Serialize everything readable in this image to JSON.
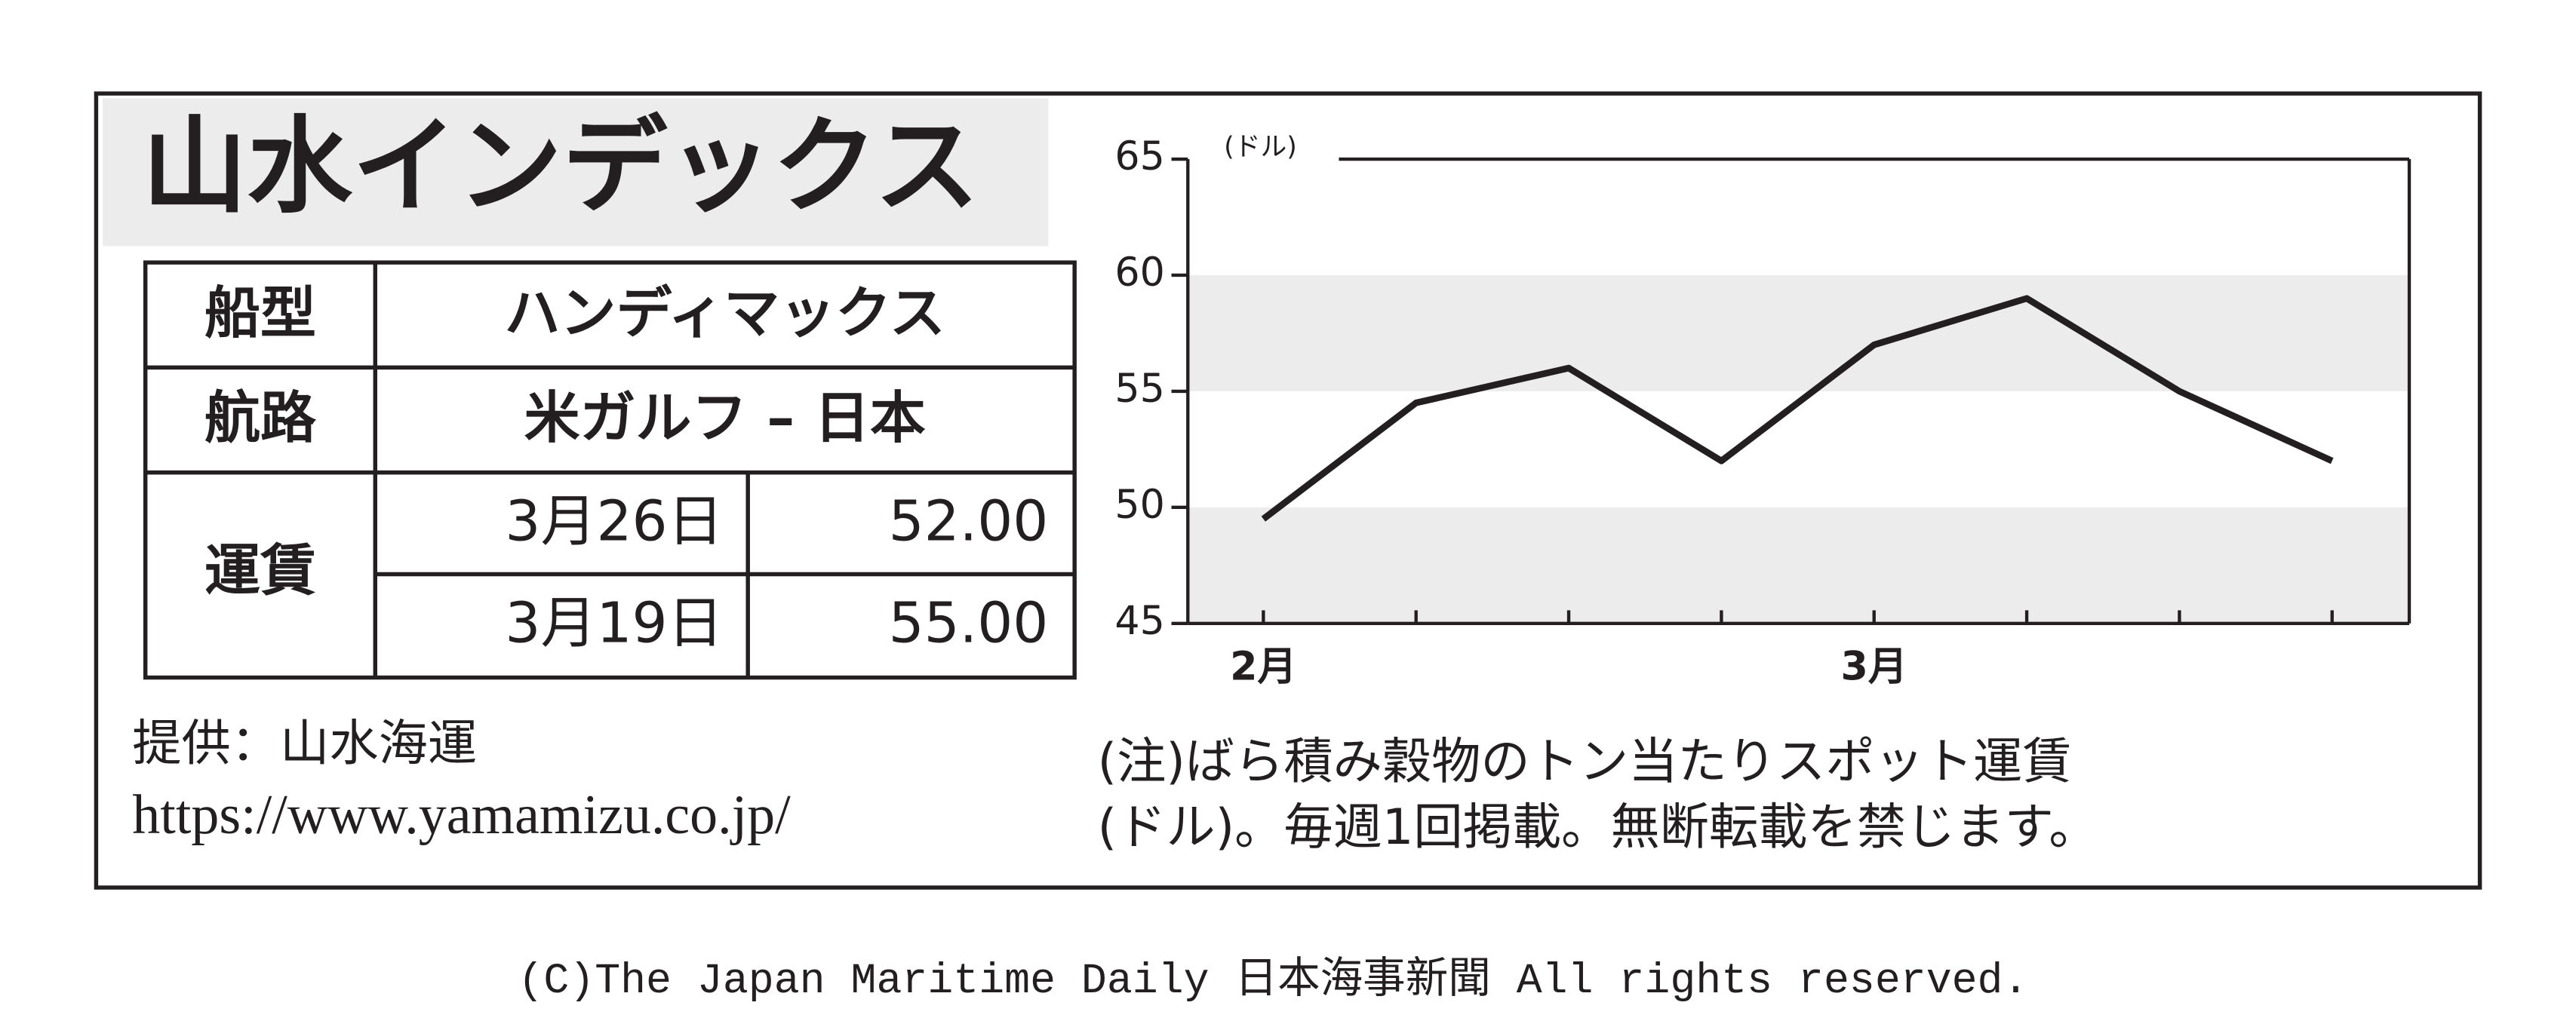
{
  "header": {
    "title": "山水インデックス"
  },
  "table": {
    "rows": [
      [
        "船型",
        "ハンディマックス"
      ],
      [
        "航路",
        "米ガルフ – 日本"
      ],
      [
        "運賃",
        "3月26日",
        "52.00"
      ],
      [
        "3月19日",
        "55.00"
      ]
    ]
  },
  "source": {
    "provider": "提供：山水海運",
    "url": "https://www.yamamizu.co.jp/"
  },
  "note": [
    "(注)ばら積み穀物のトン当たりスポット運賃",
    "(ドル)。毎週1回掲載。無断転載を禁じます。"
  ],
  "copyright": "(C)The Japan Maritime Daily 日本海事新聞 All rights reserved.",
  "chart_data": {
    "type": "line",
    "unit_label": "(ドル)",
    "categories": [
      "2月",
      null,
      null,
      null,
      "3月",
      null,
      null,
      null
    ],
    "values": [
      49.5,
      54.5,
      56,
      52,
      57,
      59,
      55,
      52
    ],
    "color": "#231f20",
    "ylim": [
      45,
      65
    ],
    "yticks": [
      45,
      50,
      55,
      60,
      65
    ],
    "bands": true
  }
}
